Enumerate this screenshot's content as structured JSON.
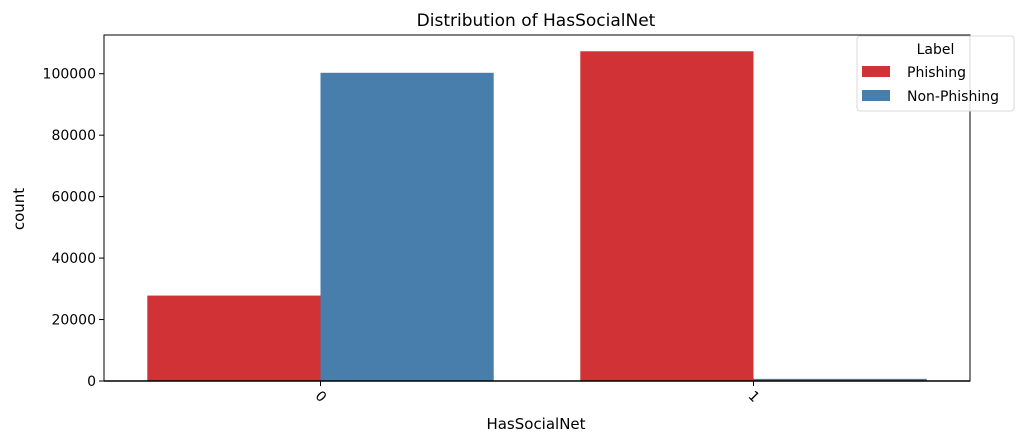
{
  "chart_data": {
    "type": "bar",
    "title": "Distribution of HasSocialNet",
    "xlabel": "HasSocialNet",
    "ylabel": "count",
    "categories": [
      "0",
      "1"
    ],
    "series": [
      {
        "name": "Phishing",
        "values": [
          27800,
          107300
        ],
        "color": "#d03236"
      },
      {
        "name": "Non-Phishing",
        "values": [
          100300,
          700
        ],
        "color": "#477eac"
      }
    ],
    "ylim": [
      0,
      112600
    ],
    "yticks": [
      0,
      20000,
      40000,
      60000,
      80000,
      100000
    ],
    "xtick_rotation": 45,
    "legend": {
      "title": "Label",
      "placement": "top-right"
    },
    "grid": false
  }
}
